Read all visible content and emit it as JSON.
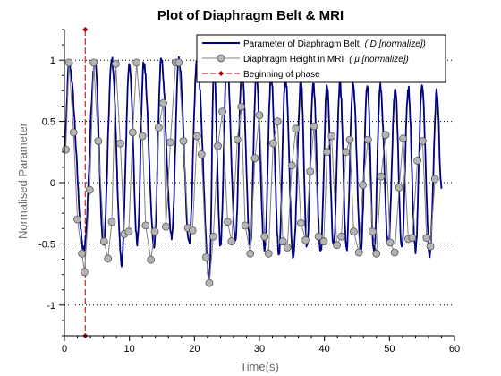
{
  "chart_data": {
    "type": "line",
    "title": "Plot of Diaphragm Belt & MRI",
    "xlabel": "Time(s)",
    "ylabel": "Normalised Parameter",
    "xlim": [
      0,
      60
    ],
    "ylim": [
      -1.25,
      1.25
    ],
    "xticks": [
      0,
      10,
      20,
      30,
      40,
      50,
      60
    ],
    "yticks": [
      -1,
      -0.5,
      0,
      0.5,
      1
    ],
    "ytick_labels": [
      "-1",
      "-0.5",
      "0",
      "0.5",
      "1"
    ],
    "grid": "dotted horizontal at y ticks",
    "legend_position": "top-right",
    "legend": [
      {
        "label": "Parameter of Diaphragm Belt",
        "unit": "( D [normalize])"
      },
      {
        "label": "Diaphragm Height in MRI",
        "unit": "( μ [normalize])"
      },
      {
        "label": "Beginning of phase",
        "unit": ""
      }
    ],
    "colors": {
      "belt": "#000080",
      "mri_line": "#808080",
      "mri_marker_fill": "#b4b4b4",
      "phase": "#b00000"
    },
    "phase_start_x": 3.2,
    "belt_signal": {
      "description": "quasi-periodic breathing trace",
      "x_start": 0,
      "x_end": 58,
      "peaks": [
        [
          0.7,
          0.97
        ],
        [
          4.7,
          1.0
        ],
        [
          7.3,
          1.0
        ],
        [
          10.0,
          0.97
        ],
        [
          12.2,
          0.97
        ],
        [
          14.9,
          1.0
        ],
        [
          17.6,
          1.0
        ],
        [
          20.4,
          1.0
        ],
        [
          23.0,
          0.92
        ],
        [
          25.0,
          0.97
        ],
        [
          27.3,
          0.93
        ],
        [
          29.5,
          0.88
        ],
        [
          31.8,
          0.87
        ],
        [
          34.0,
          0.86
        ],
        [
          36.4,
          0.82
        ],
        [
          38.3,
          0.8
        ],
        [
          40.4,
          0.8
        ],
        [
          42.4,
          0.8
        ],
        [
          44.4,
          0.8
        ],
        [
          46.6,
          0.8
        ],
        [
          48.6,
          0.78
        ],
        [
          50.9,
          0.77
        ],
        [
          52.9,
          0.77
        ],
        [
          55.0,
          0.78
        ],
        [
          57.3,
          0.75
        ]
      ],
      "troughs": [
        [
          3.0,
          -0.55
        ],
        [
          6.0,
          -0.52
        ],
        [
          8.8,
          -0.65
        ],
        [
          11.2,
          -0.48
        ],
        [
          13.8,
          -0.5
        ],
        [
          16.5,
          -0.45
        ],
        [
          19.2,
          -0.48
        ],
        [
          22.3,
          -0.78
        ],
        [
          24.0,
          -0.5
        ],
        [
          26.3,
          -0.45
        ],
        [
          28.6,
          -0.52
        ],
        [
          30.8,
          -0.55
        ],
        [
          33.0,
          -0.58
        ],
        [
          35.2,
          -0.6
        ],
        [
          37.3,
          -0.52
        ],
        [
          39.4,
          -0.58
        ],
        [
          41.4,
          -0.52
        ],
        [
          43.4,
          -0.55
        ],
        [
          45.6,
          -0.55
        ],
        [
          47.6,
          -0.58
        ],
        [
          49.8,
          -0.52
        ],
        [
          51.9,
          -0.53
        ],
        [
          54.0,
          -0.55
        ],
        [
          56.2,
          -0.58
        ]
      ],
      "end_value": -0.05
    },
    "mri_points": {
      "x": [
        0.2,
        0.7,
        1.4,
        2.0,
        2.7,
        3.1,
        3.9,
        4.5,
        5.2,
        6.1,
        6.7,
        7.3,
        7.9,
        8.6,
        9.2,
        9.9,
        10.5,
        11.1,
        12.0,
        12.5,
        13.3,
        13.9,
        14.5,
        15.2,
        15.6,
        16.3,
        17.1,
        17.6,
        18.3,
        19.0,
        19.7,
        20.4,
        21.1,
        21.8,
        22.3,
        22.9,
        23.6,
        24.3,
        25.1,
        25.7,
        26.6,
        27.2,
        27.8,
        28.6,
        29.3,
        30.0,
        30.8,
        31.4,
        32.1,
        32.8,
        33.6,
        34.3,
        35.0,
        35.6,
        36.4,
        37.1,
        37.8,
        38.4,
        39.1,
        39.9,
        40.4,
        41.1,
        41.9,
        42.6,
        43.3,
        43.9,
        44.5,
        45.3,
        45.9,
        46.7,
        47.4,
        48.0,
        48.7,
        49.4,
        50.1,
        50.8,
        51.5,
        52.1,
        52.9,
        53.5,
        54.3,
        55.1,
        55.7,
        56.3,
        57.0
      ],
      "y": [
        0.27,
        0.98,
        0.41,
        -0.3,
        -0.58,
        -0.73,
        -0.06,
        0.98,
        0.34,
        -0.48,
        -0.62,
        -0.32,
        0.97,
        0.32,
        -0.42,
        -0.4,
        0.41,
        0.98,
        0.38,
        -0.35,
        -0.63,
        -0.4,
        0.45,
        0.65,
        -0.36,
        0.33,
        0.98,
        0.98,
        0.34,
        -0.37,
        -0.39,
        0.38,
        0.23,
        -0.61,
        -0.82,
        -0.44,
        0.3,
        0.58,
        -0.32,
        -0.48,
        0.35,
        0.62,
        -0.35,
        -0.58,
        0.2,
        0.55,
        -0.44,
        -0.58,
        0.32,
        0.5,
        -0.48,
        -0.53,
        0.14,
        0.44,
        -0.33,
        -0.47,
        0.09,
        0.46,
        -0.44,
        -0.48,
        0.25,
        0.38,
        -0.51,
        -0.44,
        0.25,
        0.35,
        -0.4,
        -0.57,
        -0.02,
        0.35,
        -0.4,
        -0.58,
        0.05,
        0.39,
        -0.49,
        -0.57,
        -0.04,
        0.36,
        -0.46,
        -0.45,
        0.18,
        0.34,
        -0.45,
        -0.52,
        0.03
      ]
    }
  }
}
